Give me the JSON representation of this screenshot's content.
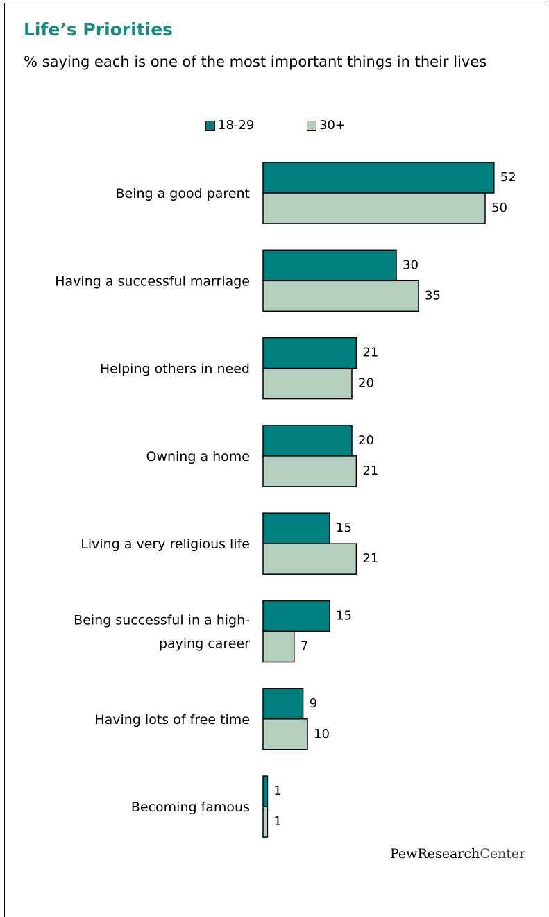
{
  "header": {
    "title": "Life’s Priorities",
    "subtitle": "% saying each is one of the most important things in their lives"
  },
  "colors": {
    "title": "#1a8a80",
    "series_18_29": "#007f7f",
    "series_30_plus": "#b5cfbf"
  },
  "source": {
    "logo_bold": "PewResearch",
    "logo_light": "Center"
  },
  "chart_data": {
    "type": "bar",
    "orientation": "horizontal",
    "title": "Life’s Priorities",
    "subtitle": "% saying each is one of the most important things in their lives",
    "legend_position": "top",
    "grid": false,
    "categories": [
      [
        "Being a good parent"
      ],
      [
        "Having a successful marriage"
      ],
      [
        "Helping others in need"
      ],
      [
        "Owning a home"
      ],
      [
        "Living a very religious life"
      ],
      [
        "Being successful in a high-",
        "paying career"
      ],
      [
        "Having lots of free time"
      ],
      [
        "Becoming famous"
      ]
    ],
    "series": [
      {
        "name": "18-29",
        "color": "#007f7f",
        "values": [
          52,
          30,
          21,
          20,
          15,
          15,
          9,
          1
        ]
      },
      {
        "name": "30+",
        "color": "#b5cfbf",
        "values": [
          50,
          35,
          20,
          21,
          21,
          7,
          10,
          1
        ]
      }
    ],
    "xlim": [
      0,
      52
    ]
  }
}
